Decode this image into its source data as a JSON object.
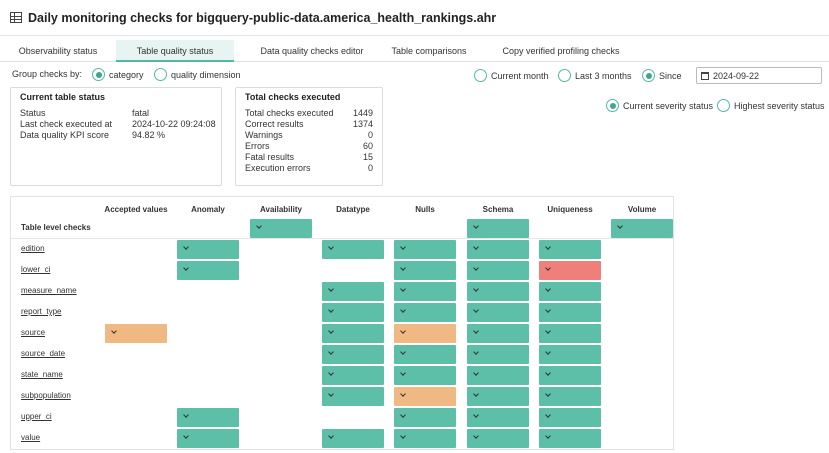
{
  "header": {
    "title": "Daily monitoring checks for bigquery-public-data.america_health_rankings.ahr"
  },
  "tabs": [
    {
      "label": "Observability status",
      "active": false
    },
    {
      "label": "Table quality status",
      "active": true
    },
    {
      "label": "Data quality checks editor",
      "active": false
    },
    {
      "label": "Table comparisons",
      "active": false
    },
    {
      "label": "Copy verified profiling checks",
      "active": false
    }
  ],
  "group_by": {
    "label": "Group checks by:",
    "options": [
      {
        "label": "category",
        "checked": true
      },
      {
        "label": "quality dimension",
        "checked": false
      }
    ]
  },
  "period": {
    "options": [
      {
        "label": "Current month",
        "checked": false
      },
      {
        "label": "Last 3 months",
        "checked": false
      },
      {
        "label": "Since",
        "checked": true
      }
    ],
    "since_date": "2024-09-22"
  },
  "severity": {
    "options": [
      {
        "label": "Current severity status",
        "checked": true
      },
      {
        "label": "Highest severity status",
        "checked": false
      }
    ]
  },
  "current_status": {
    "title": "Current table status",
    "rows": [
      {
        "label": "Status",
        "value": "fatal"
      },
      {
        "label": "Last check executed at",
        "value": "2024-10-22 09:24:08"
      },
      {
        "label": "Data quality KPI score",
        "value": "94.82 %"
      }
    ]
  },
  "totals": {
    "title": "Total checks executed",
    "rows": [
      {
        "label": "Total checks executed",
        "value": "1449"
      },
      {
        "label": "Correct results",
        "value": "1374"
      },
      {
        "label": "Warnings",
        "value": "0"
      },
      {
        "label": "Errors",
        "value": "60"
      },
      {
        "label": "Fatal results",
        "value": "15"
      },
      {
        "label": "Execution errors",
        "value": "0"
      }
    ]
  },
  "grid": {
    "columns": [
      "Accepted values",
      "Anomaly",
      "Availability",
      "Datatype",
      "Nulls",
      "Schema",
      "Uniqueness",
      "Volume"
    ],
    "rows": [
      {
        "label": "Table level checks",
        "cells": [
          null,
          null,
          "green",
          null,
          null,
          "green",
          null,
          "green"
        ]
      },
      {
        "label": "edition",
        "cells": [
          null,
          "green",
          null,
          "green",
          "green",
          "green",
          "green",
          null
        ]
      },
      {
        "label": "lower_ci",
        "cells": [
          null,
          "green",
          null,
          null,
          "green",
          "green",
          "red",
          null
        ]
      },
      {
        "label": "measure_name",
        "cells": [
          null,
          null,
          null,
          "green",
          "green",
          "green",
          "green",
          null
        ]
      },
      {
        "label": "report_type",
        "cells": [
          null,
          null,
          null,
          "green",
          "green",
          "green",
          "green",
          null
        ]
      },
      {
        "label": "source",
        "cells": [
          "orange",
          null,
          null,
          "green",
          "orange",
          "green",
          "green",
          null
        ]
      },
      {
        "label": "source_date",
        "cells": [
          null,
          null,
          null,
          "green",
          "green",
          "green",
          "green",
          null
        ]
      },
      {
        "label": "state_name",
        "cells": [
          null,
          null,
          null,
          "green",
          "green",
          "green",
          "green",
          null
        ]
      },
      {
        "label": "subpopulation",
        "cells": [
          null,
          null,
          null,
          "green",
          "orange",
          "green",
          "green",
          null
        ]
      },
      {
        "label": "upper_ci",
        "cells": [
          null,
          "green",
          null,
          null,
          "green",
          "green",
          "green",
          null
        ]
      },
      {
        "label": "value",
        "cells": [
          null,
          "green",
          null,
          "green",
          "green",
          "green",
          "green",
          null
        ]
      }
    ]
  },
  "colors": {
    "green": "#5dbfa8",
    "orange": "#f0b882",
    "red": "#ee7f7a",
    "accent": "#56b7a6"
  }
}
